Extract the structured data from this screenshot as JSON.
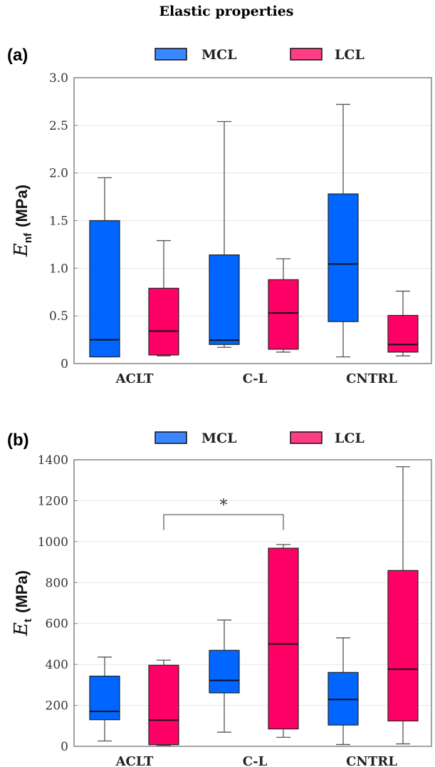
{
  "title": "Elastic properties",
  "colors": {
    "MCL": "#0066ff",
    "LCL": "#ff0066",
    "legend_MCL": "#3a86ff",
    "legend_LCL": "#ff3d85"
  },
  "chart_data": [
    {
      "type": "box",
      "panel_label": "(a)",
      "ylabel_main": "E",
      "ylabel_sub": "nf",
      "ylabel_unit": "(MPa)",
      "ylim": [
        0,
        3.0
      ],
      "yticks": [
        "0",
        "0.5",
        "1.0",
        "1.5",
        "2.0",
        "2.5",
        "3.0"
      ],
      "ytick_values": [
        0,
        0.5,
        1.0,
        1.5,
        2.0,
        2.5,
        3.0
      ],
      "categories": [
        "ACLT",
        "C-L",
        "CNTRL"
      ],
      "legend": [
        "MCL",
        "LCL"
      ],
      "legend_placement": "top-center",
      "grid": true,
      "series": [
        {
          "name": "MCL",
          "boxes": [
            {
              "min": 0.07,
              "q1": 0.07,
              "median": 0.25,
              "q3": 1.5,
              "max": 1.95
            },
            {
              "min": 0.17,
              "q1": 0.2,
              "median": 0.245,
              "q3": 1.14,
              "max": 2.54
            },
            {
              "min": 0.07,
              "q1": 0.44,
              "median": 1.045,
              "q3": 1.78,
              "max": 2.72
            }
          ]
        },
        {
          "name": "LCL",
          "boxes": [
            {
              "min": 0.08,
              "q1": 0.09,
              "median": 0.34,
              "q3": 0.79,
              "max": 1.29
            },
            {
              "min": 0.12,
              "q1": 0.15,
              "median": 0.53,
              "q3": 0.88,
              "max": 1.1
            },
            {
              "min": 0.08,
              "q1": 0.12,
              "median": 0.2,
              "q3": 0.505,
              "max": 0.76
            }
          ]
        }
      ]
    },
    {
      "type": "box",
      "panel_label": "(b)",
      "ylabel_main": "E",
      "ylabel_sub": "t",
      "ylabel_unit": "(MPa)",
      "ylim": [
        0,
        1400
      ],
      "yticks": [
        "0",
        "200",
        "400",
        "600",
        "800",
        "1000",
        "1200",
        "1400"
      ],
      "ytick_values": [
        0,
        200,
        400,
        600,
        800,
        1000,
        1200,
        1400
      ],
      "categories": [
        "ACLT",
        "C-L",
        "CNTRL"
      ],
      "legend": [
        "MCL",
        "LCL"
      ],
      "legend_placement": "top-center",
      "grid": true,
      "series": [
        {
          "name": "MCL",
          "boxes": [
            {
              "min": 26,
              "q1": 130,
              "median": 171,
              "q3": 343,
              "max": 436
            },
            {
              "min": 69,
              "q1": 261,
              "median": 322,
              "q3": 469,
              "max": 617
            },
            {
              "min": 9,
              "q1": 104,
              "median": 229,
              "q3": 361,
              "max": 530
            }
          ]
        },
        {
          "name": "LCL",
          "boxes": [
            {
              "min": 5,
              "q1": 8,
              "median": 128,
              "q3": 396,
              "max": 421
            },
            {
              "min": 44,
              "q1": 85,
              "median": 500,
              "q3": 968,
              "max": 986
            },
            {
              "min": 12,
              "q1": 124,
              "median": 377,
              "q3": 859,
              "max": 1366
            }
          ]
        }
      ],
      "annotations": [
        {
          "text": "*",
          "from": "ACLT LCL",
          "to": "C-L LCL",
          "y": 1132,
          "leg_bottom": 1057
        }
      ]
    }
  ]
}
